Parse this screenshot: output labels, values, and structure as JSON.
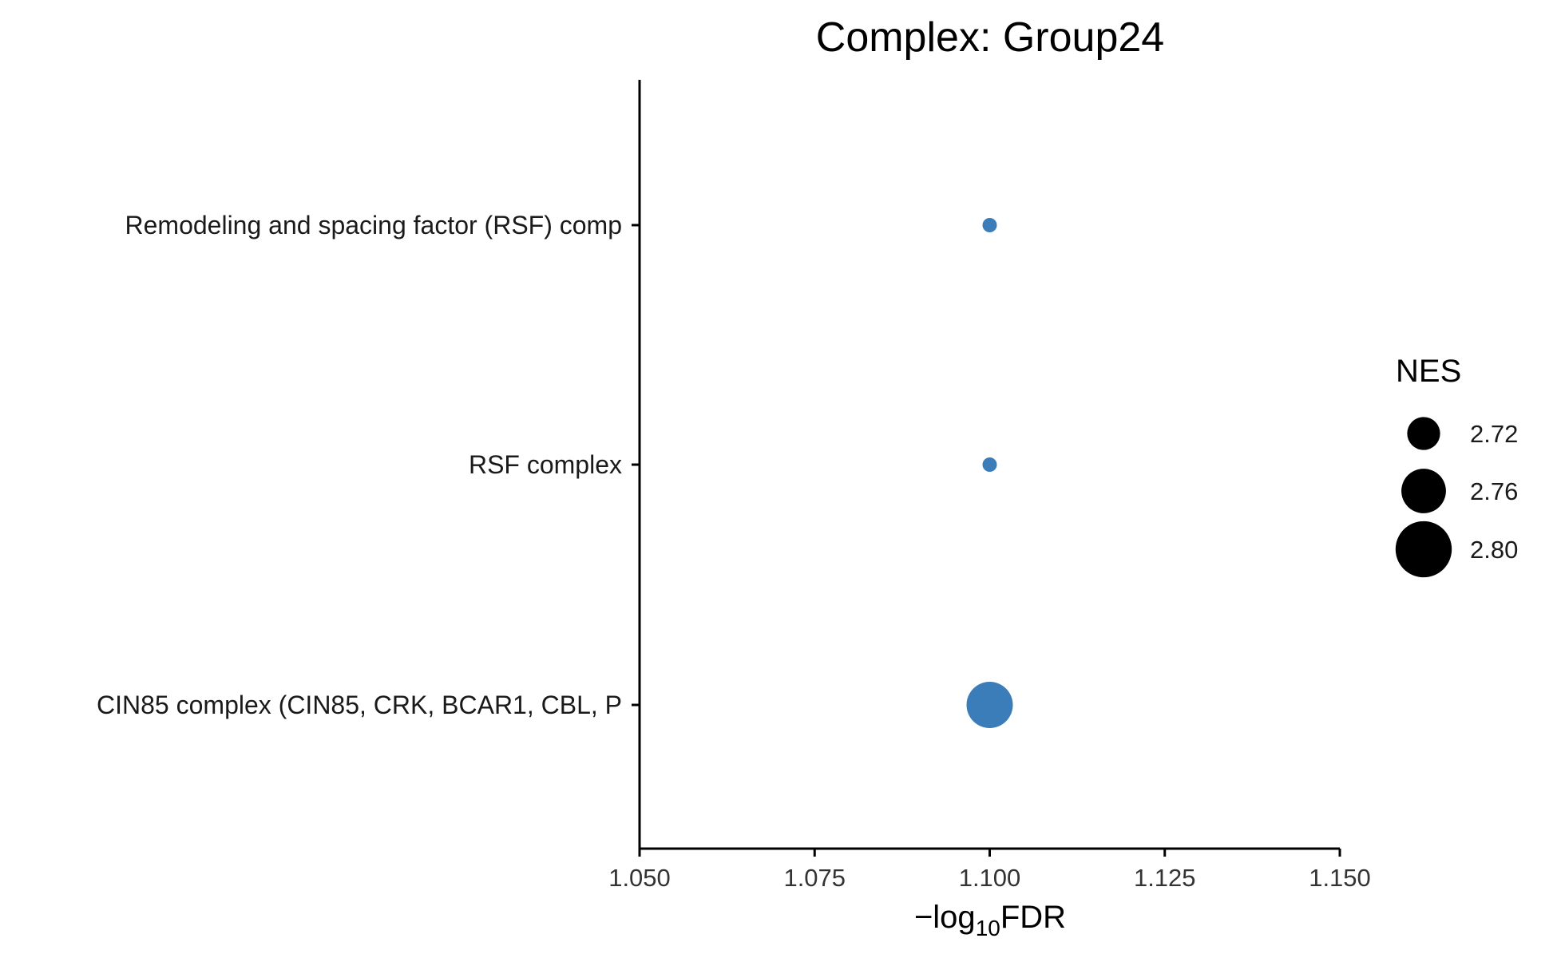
{
  "chart_data": {
    "type": "scatter",
    "title": "Complex: Group24",
    "xlabel_prefix": "−log",
    "xlabel_sub": "10",
    "xlabel_suffix": "FDR",
    "ylabel": "",
    "xlim": [
      1.05,
      1.15
    ],
    "x_ticks": [
      "1.050",
      "1.075",
      "1.100",
      "1.125",
      "1.150"
    ],
    "x_tick_values": [
      1.05,
      1.075,
      1.1,
      1.125,
      1.15
    ],
    "categories": [
      "Remodeling and spacing factor (RSF) comp",
      "RSF complex",
      "CIN85 complex (CIN85, CRK, BCAR1, CBL, P"
    ],
    "points": [
      {
        "category": "Remodeling and spacing factor (RSF) comp",
        "x": 1.1,
        "nes": 2.7
      },
      {
        "category": "RSF complex",
        "x": 1.1,
        "nes": 2.7
      },
      {
        "category": "CIN85 complex (CIN85, CRK, BCAR1, CBL, P",
        "x": 1.1,
        "nes": 2.81
      }
    ],
    "point_color": "#3A7DB8",
    "legend": {
      "title": "NES",
      "position": "right",
      "entries": [
        {
          "label": "2.72",
          "nes": 2.72
        },
        {
          "label": "2.76",
          "nes": 2.76
        },
        {
          "label": "2.80",
          "nes": 2.8
        }
      ],
      "color": "#000000"
    },
    "grid": false
  }
}
